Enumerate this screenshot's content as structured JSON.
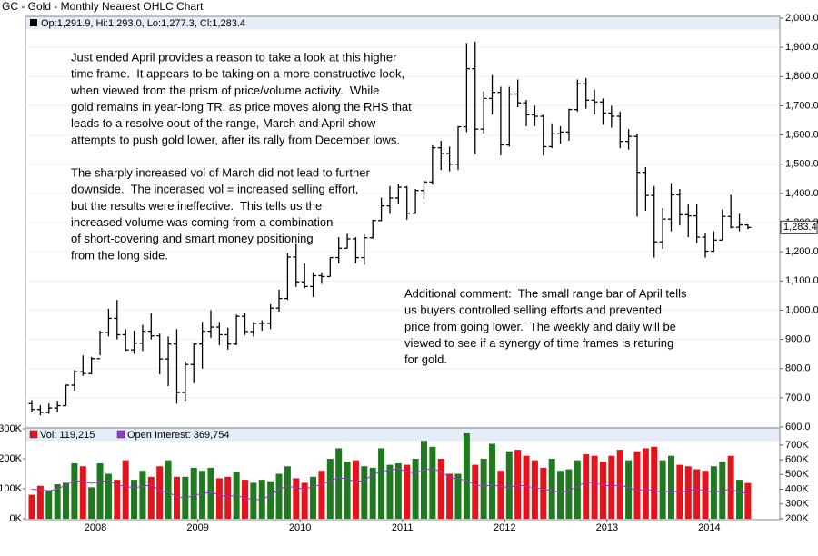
{
  "chart_data": [
    {
      "type": "ohlc",
      "title": "GC - Gold - Monthly Nearest OHLC Chart",
      "legend_label": "Op:1,291.9, Hi:1,293.0, Lo:1,277.3, Cl:1,283.4",
      "color": "#000000",
      "open": [
        680,
        660,
        650,
        665,
        673,
        743,
        789,
        783,
        834,
        923,
        972,
        916,
        864,
        887,
        928,
        912,
        833,
        884,
        718,
        814,
        884,
        928,
        942,
        916,
        884,
        979,
        927,
        955,
        955,
        1007,
        1040,
        1182,
        1097,
        1081,
        1118,
        1115,
        1180,
        1212,
        1244,
        1180,
        1248,
        1307,
        1357,
        1384,
        1421,
        1332,
        1410,
        1439,
        1556,
        1536,
        1500,
        1628,
        1827,
        1620,
        1725,
        1746,
        1566,
        1740,
        1710,
        1669,
        1664,
        1560,
        1604,
        1610,
        1687,
        1775,
        1719,
        1713,
        1675,
        1664,
        1578,
        1595,
        1472,
        1393,
        1234,
        1312,
        1395,
        1327,
        1323,
        1250,
        1202,
        1240,
        1321,
        1284,
        1291.9
      ],
      "high": [
        692,
        675,
        680,
        690,
        745,
        795,
        845,
        840,
        930,
        1005,
        1035,
        935,
        930,
        950,
        990,
        920,
        910,
        935,
        825,
        885,
        960,
        1000,
        960,
        940,
        985,
        990,
        960,
        965,
        1020,
        1070,
        1195,
        1227,
        1160,
        1130,
        1130,
        1180,
        1250,
        1262,
        1250,
        1260,
        1310,
        1385,
        1425,
        1432,
        1425,
        1415,
        1445,
        1565,
        1580,
        1560,
        1630,
        1915,
        1920,
        1750,
        1805,
        1765,
        1765,
        1790,
        1720,
        1700,
        1670,
        1640,
        1630,
        1690,
        1790,
        1795,
        1755,
        1725,
        1700,
        1680,
        1620,
        1605,
        1490,
        1425,
        1350,
        1435,
        1415,
        1365,
        1365,
        1265,
        1270,
        1345,
        1395,
        1330,
        1293
      ],
      "low": [
        650,
        640,
        645,
        650,
        672,
        725,
        775,
        780,
        845,
        910,
        900,
        860,
        850,
        860,
        900,
        780,
        740,
        680,
        690,
        750,
        800,
        905,
        880,
        865,
        880,
        915,
        910,
        930,
        935,
        995,
        1035,
        1080,
        1075,
        1045,
        1090,
        1115,
        1160,
        1212,
        1160,
        1155,
        1245,
        1305,
        1330,
        1365,
        1310,
        1330,
        1380,
        1430,
        1480,
        1475,
        1480,
        1610,
        1535,
        1605,
        1670,
        1530,
        1560,
        1695,
        1630,
        1630,
        1530,
        1555,
        1570,
        1580,
        1680,
        1690,
        1670,
        1635,
        1625,
        1555,
        1550,
        1320,
        1340,
        1180,
        1210,
        1270,
        1290,
        1250,
        1230,
        1180,
        1200,
        1240,
        1280,
        1270,
        1277.3
      ],
      "close": [
        660,
        650,
        665,
        673,
        743,
        789,
        783,
        834,
        923,
        972,
        916,
        864,
        887,
        928,
        912,
        833,
        884,
        718,
        814,
        884,
        928,
        942,
        916,
        884,
        979,
        927,
        955,
        955,
        1007,
        1040,
        1182,
        1097,
        1081,
        1118,
        1115,
        1180,
        1212,
        1244,
        1180,
        1248,
        1307,
        1357,
        1384,
        1421,
        1332,
        1410,
        1439,
        1556,
        1536,
        1500,
        1628,
        1827,
        1620,
        1725,
        1746,
        1566,
        1740,
        1710,
        1669,
        1664,
        1560,
        1604,
        1610,
        1687,
        1775,
        1719,
        1713,
        1675,
        1664,
        1578,
        1595,
        1472,
        1393,
        1234,
        1312,
        1395,
        1327,
        1323,
        1250,
        1202,
        1240,
        1321,
        1284,
        1291.9,
        1283.4
      ],
      "last_price": {
        "value": 1283.4,
        "label": "1,283.4"
      },
      "ylim": [
        600,
        2000
      ],
      "yticks": [
        {
          "value": 600,
          "label": "600.0"
        },
        {
          "value": 700,
          "label": "700.0"
        },
        {
          "value": 800,
          "label": "800.0"
        },
        {
          "value": 900,
          "label": "900.0"
        },
        {
          "value": 1000,
          "label": "1,000.0"
        },
        {
          "value": 1100,
          "label": "1,100.0"
        },
        {
          "value": 1200,
          "label": "1,200.0"
        },
        {
          "value": 1300,
          "label": "1,300.0"
        },
        {
          "value": 1400,
          "label": "1,400.0"
        },
        {
          "value": 1500,
          "label": "1,500.0"
        },
        {
          "value": 1600,
          "label": "1,600.0"
        },
        {
          "value": 1700,
          "label": "1,700.0"
        },
        {
          "value": 1800,
          "label": "1,800.0"
        },
        {
          "value": 1900,
          "label": "1,900.0"
        },
        {
          "value": 2000,
          "label": "2,000.0"
        }
      ],
      "grid": true,
      "annotations": [
        [
          "Just ended April provides a reason to take a look at this higher",
          "time frame.  It appears to be taking on a more constructive look,",
          "when viewed from the prism of price/volume activity.  While",
          "gold remains in year-long TR, as price moves along the RHS that",
          "leads to a resolve oout of the range, March and April show",
          "attempts to push gold lower, after its rally from December lows."
        ],
        [
          "The sharply increased vol of March did not lead to further",
          "downside.  The incerased vol = increased selling effort,",
          "but the results were ineffective.  This tells us the",
          "increased volume was coming from a combination",
          "of short-covering and smart money positioning",
          "from the long side."
        ],
        [
          "Additional comment:  The small range bar of April tells",
          "us buyers controlled selling efforts and prevented",
          "price from going lower.  The weekly and daily will be",
          "viewed to see if a synergy of time frames is returing",
          "for gold."
        ]
      ]
    },
    {
      "type": "bar",
      "categories": [
        null,
        null,
        null,
        null,
        null,
        null,
        null,
        null,
        "2008",
        null,
        null,
        null,
        null,
        null,
        null,
        null,
        null,
        null,
        null,
        null,
        "2009",
        null,
        null,
        null,
        null,
        null,
        null,
        null,
        null,
        null,
        null,
        null,
        "2010",
        null,
        null,
        null,
        null,
        null,
        null,
        null,
        null,
        null,
        null,
        null,
        "2011",
        null,
        null,
        null,
        null,
        null,
        null,
        null,
        null,
        null,
        null,
        null,
        "2012",
        null,
        null,
        null,
        null,
        null,
        null,
        null,
        null,
        null,
        null,
        null,
        "2013",
        null,
        null,
        null,
        null,
        null,
        null,
        null,
        null,
        null,
        null,
        null,
        "2014",
        null,
        null,
        null,
        null
      ],
      "series": [
        {
          "name": "Vol: 119,215",
          "color": "#e3141b",
          "up_color": "#1f7a1f",
          "down_color": "#e3141b",
          "values": [
            80,
            110,
            95,
            115,
            120,
            185,
            175,
            105,
            185,
            150,
            130,
            195,
            130,
            160,
            140,
            175,
            195,
            140,
            140,
            170,
            160,
            170,
            135,
            140,
            155,
            130,
            120,
            130,
            125,
            150,
            175,
            135,
            120,
            140,
            160,
            200,
            235,
            190,
            195,
            175,
            170,
            235,
            180,
            185,
            180,
            200,
            260,
            240,
            200,
            150,
            150,
            285,
            180,
            200,
            250,
            160,
            225,
            230,
            210,
            195,
            170,
            200,
            160,
            165,
            195,
            215,
            210,
            190,
            210,
            230,
            195,
            225,
            235,
            240,
            195,
            210,
            180,
            175,
            165,
            160,
            175,
            190,
            210,
            130,
            119.215
          ]
        },
        {
          "name": "Open Interest: 369,754",
          "color": "#9933cc",
          "type": "line",
          "axis": "y2",
          "values": [
            400,
            395,
            390,
            400,
            430,
            460,
            450,
            440,
            450,
            460,
            430,
            420,
            410,
            420,
            430,
            390,
            380,
            350,
            340,
            360,
            370,
            380,
            360,
            350,
            360,
            340,
            330,
            330,
            360,
            400,
            420,
            410,
            400,
            420,
            430,
            460,
            480,
            470,
            450,
            460,
            500,
            520,
            530,
            540,
            520,
            510,
            530,
            540,
            520,
            480,
            470,
            460,
            430,
            420,
            430,
            420,
            410,
            430,
            420,
            410,
            400,
            390,
            380,
            390,
            420,
            450,
            440,
            430,
            420,
            430,
            410,
            390,
            400,
            390,
            380,
            390,
            380,
            390,
            400,
            390,
            380,
            390,
            400,
            380,
            369.754
          ]
        }
      ],
      "ylim": [
        0,
        300
      ],
      "yticks": [
        {
          "value": 0,
          "label": "0K"
        },
        {
          "value": 100,
          "label": "100K"
        },
        {
          "value": 200,
          "label": "200K"
        },
        {
          "value": 300,
          "label": "300K"
        }
      ],
      "y2lim": [
        200,
        810
      ],
      "y2ticks": [
        {
          "value": 200,
          "label": "200K"
        },
        {
          "value": 300,
          "label": "300K"
        },
        {
          "value": 400,
          "label": "400K"
        },
        {
          "value": 500,
          "label": "500K"
        },
        {
          "value": 600,
          "label": "600K"
        },
        {
          "value": 700,
          "label": "700K"
        }
      ]
    }
  ]
}
